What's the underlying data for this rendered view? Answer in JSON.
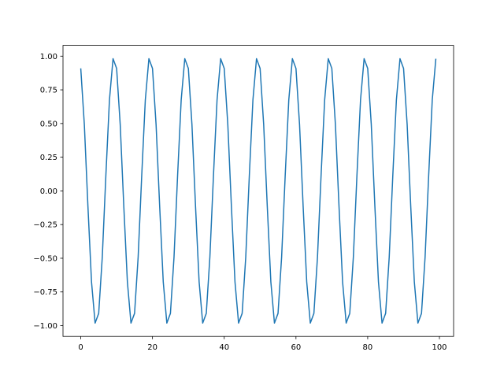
{
  "chart_data": {
    "type": "line",
    "title": "",
    "xlabel": "",
    "ylabel": "",
    "xlim": [
      -4.95,
      103.95
    ],
    "ylim": [
      -1.08,
      1.08
    ],
    "grid": false,
    "xticks": [
      0,
      20,
      40,
      60,
      80,
      100
    ],
    "xtick_labels": [
      "0",
      "20",
      "40",
      "60",
      "80",
      "100"
    ],
    "yticks": [
      -1.0,
      -0.75,
      -0.5,
      -0.25,
      0.0,
      0.25,
      0.5,
      0.75,
      1.0
    ],
    "ytick_labels": [
      "−1.00",
      "−0.75",
      "−0.50",
      "−0.25",
      "0.00",
      "0.25",
      "0.50",
      "0.75",
      "1.00"
    ],
    "series": [
      {
        "color": "#1f77b4",
        "x_start": 0,
        "x_step": 1,
        "values": [
          0.909,
          0.492,
          -0.114,
          -0.675,
          -0.981,
          -0.909,
          -0.492,
          0.114,
          0.675,
          0.981,
          0.909,
          0.492,
          -0.114,
          -0.675,
          -0.981,
          -0.909,
          -0.492,
          0.114,
          0.675,
          0.981,
          0.909,
          0.492,
          -0.114,
          -0.675,
          -0.981,
          -0.909,
          -0.492,
          0.114,
          0.675,
          0.981,
          0.909,
          0.492,
          -0.114,
          -0.675,
          -0.981,
          -0.909,
          -0.492,
          0.114,
          0.675,
          0.981,
          0.909,
          0.492,
          -0.114,
          -0.675,
          -0.981,
          -0.909,
          -0.492,
          0.114,
          0.675,
          0.981,
          0.909,
          0.492,
          -0.114,
          -0.675,
          -0.981,
          -0.909,
          -0.492,
          0.114,
          0.675,
          0.981,
          0.909,
          0.492,
          -0.114,
          -0.675,
          -0.981,
          -0.909,
          -0.492,
          0.114,
          0.675,
          0.981,
          0.909,
          0.492,
          -0.114,
          -0.675,
          -0.981,
          -0.909,
          -0.492,
          0.114,
          0.675,
          0.981,
          0.909,
          0.492,
          -0.114,
          -0.675,
          -0.981,
          -0.909,
          -0.492,
          0.114,
          0.675,
          0.981,
          0.909,
          0.492,
          -0.114,
          -0.675,
          -0.981,
          -0.909,
          -0.492,
          0.114,
          0.675,
          0.981
        ]
      }
    ]
  }
}
